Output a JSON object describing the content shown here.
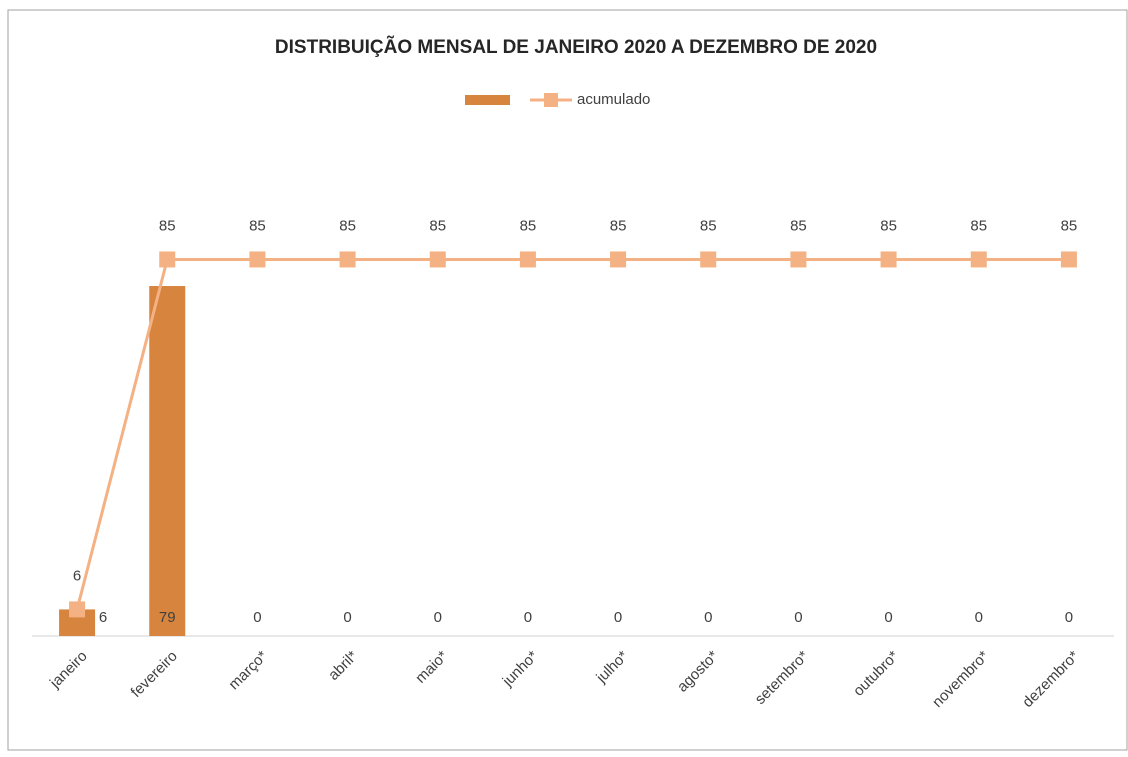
{
  "chart_data": {
    "type": "bar_line",
    "title": "DISTRIBUIÇÃO MENSAL DE JANEIRO 2020 A DEZEMBRO DE 2020",
    "categories": [
      "janeiro",
      "fevereiro",
      "março*",
      "abril*",
      "maio*",
      "junho*",
      "julho*",
      "agosto*",
      "setembro*",
      "outubro*",
      "novembro*",
      "dezembro*"
    ],
    "series": [
      {
        "type": "bar",
        "color": "#d6843e",
        "values": [
          6,
          79,
          0,
          0,
          0,
          0,
          0,
          0,
          0,
          0,
          0,
          0
        ]
      },
      {
        "type": "line",
        "name": "acumulado",
        "color": "#f4b183",
        "values": [
          6,
          85,
          85,
          85,
          85,
          85,
          85,
          85,
          85,
          85,
          85,
          85
        ]
      }
    ],
    "ylim": [
      0,
      100
    ]
  }
}
